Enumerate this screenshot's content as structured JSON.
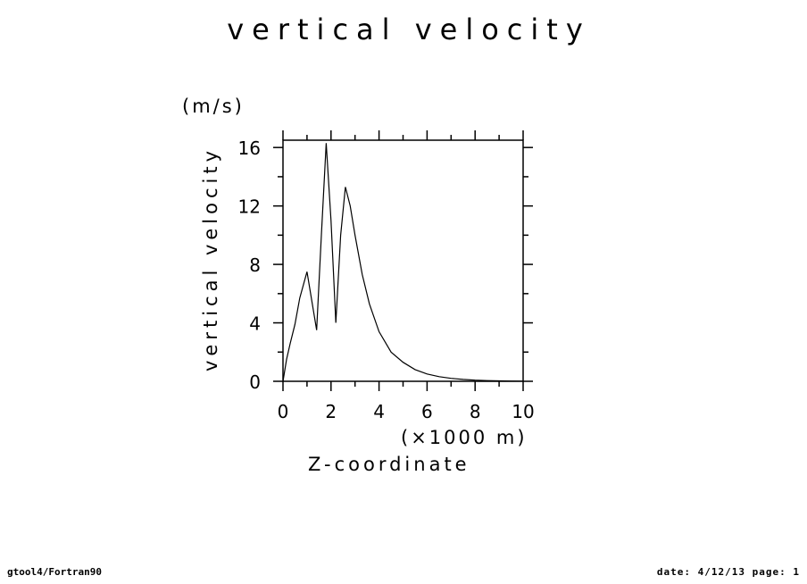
{
  "chart_data": {
    "type": "line",
    "title": "vertical velocity",
    "xlabel": "Z-coordinate",
    "xunit": "(×1000 m)",
    "ylabel": "vertical velocity",
    "yunit": "(m/s)",
    "xlim": [
      0,
      10
    ],
    "ylim": [
      0,
      16.5
    ],
    "xticks": [
      0,
      2,
      4,
      6,
      8,
      10
    ],
    "yticks": [
      0,
      4,
      8,
      12,
      16
    ],
    "grid": false,
    "series": [
      {
        "x": [
          0,
          0.15,
          0.3,
          0.5,
          0.7,
          1.0,
          1.2,
          1.4,
          1.6,
          1.8,
          2.0,
          2.2,
          2.4,
          2.6,
          2.8,
          3.0,
          3.3,
          3.6,
          4.0,
          4.5,
          5.0,
          5.5,
          6.0,
          6.5,
          7.0,
          7.5,
          8.0,
          8.5,
          9.0,
          9.5,
          10.0
        ],
        "y": [
          0,
          1.5,
          2.6,
          3.9,
          5.7,
          7.5,
          5.5,
          3.5,
          10.0,
          16.3,
          11.0,
          4.0,
          10.0,
          13.3,
          12.0,
          10.0,
          7.3,
          5.3,
          3.4,
          2.0,
          1.3,
          0.8,
          0.5,
          0.32,
          0.2,
          0.13,
          0.08,
          0.05,
          0.03,
          0.02,
          0.01
        ]
      }
    ]
  },
  "footer": {
    "left": "gtool4/Fortran90",
    "right": "date: 4/12/13 page: 1"
  }
}
